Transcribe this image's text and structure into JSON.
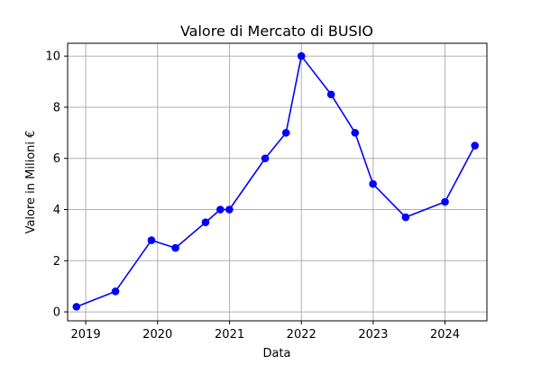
{
  "chart_data": {
    "type": "line",
    "title": "Valore di Mercato di BUSIO",
    "xlabel": "Data",
    "ylabel": "Valore in Milioni €",
    "x_ticks": [
      "2019",
      "2020",
      "2021",
      "2022",
      "2023",
      "2024"
    ],
    "y_ticks": [
      "0",
      "2",
      "4",
      "6",
      "8",
      "10"
    ],
    "xlim": [
      "2018-10-01",
      "2024-08-01"
    ],
    "ylim": [
      -0.35,
      10.5
    ],
    "grid": true,
    "series": [
      {
        "color": "#0000ff",
        "marker": "circle",
        "x": [
          "2018-11-15",
          "2019-06-01",
          "2019-12-01",
          "2020-04-01",
          "2020-09-01",
          "2020-11-15",
          "2020-12-31",
          "2021-07-01",
          "2021-10-15",
          "2022-01-01",
          "2022-06-01",
          "2022-10-01",
          "2022-12-31",
          "2023-06-15",
          "2024-01-01",
          "2024-06-01"
        ],
        "values": [
          0.2,
          0.8,
          2.8,
          2.5,
          3.5,
          4.0,
          4.0,
          6.0,
          7.0,
          10.0,
          8.5,
          7.0,
          5.0,
          3.7,
          4.3,
          6.5
        ]
      }
    ]
  }
}
